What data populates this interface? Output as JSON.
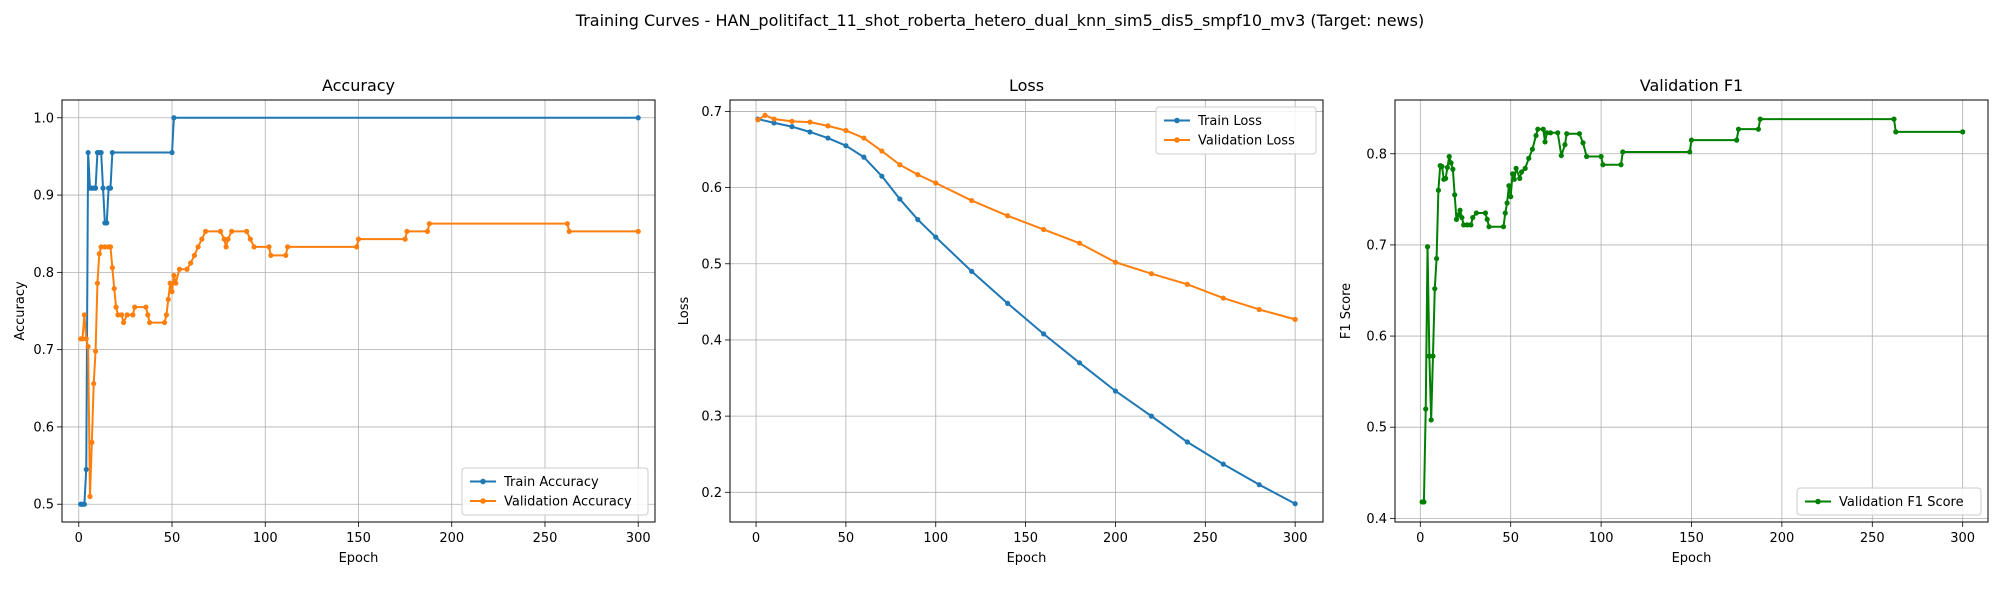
{
  "suptitle": "Training Curves - HAN_politifact_11_shot_roberta_hetero_dual_knn_sim5_dis5_smpf10_mv3 (Target: news)",
  "chart_data": [
    {
      "type": "line",
      "title": "Accuracy",
      "xlabel": "Epoch",
      "ylabel": "Accuracy",
      "xlim": [
        -9,
        309
      ],
      "ylim": [
        0.477,
        1.023
      ],
      "xticks": [
        0,
        50,
        100,
        150,
        200,
        250,
        300
      ],
      "yticks": [
        0.5,
        0.6,
        0.7,
        0.8,
        0.9,
        1.0
      ],
      "ytick_labels": [
        "0.5",
        "0.6",
        "0.7",
        "0.8",
        "0.9",
        "1.0"
      ],
      "grid": true,
      "legend_loc": "lower-right",
      "series": [
        {
          "name": "Train Accuracy",
          "color": "#1f77b4",
          "points": [
            [
              1,
              0.5
            ],
            [
              2,
              0.5
            ],
            [
              3,
              0.5
            ],
            [
              4,
              0.545
            ],
            [
              5,
              0.955
            ],
            [
              6,
              0.909
            ],
            [
              7,
              0.909
            ],
            [
              8,
              0.909
            ],
            [
              9,
              0.909
            ],
            [
              10,
              0.955
            ],
            [
              11,
              0.955
            ],
            [
              12,
              0.955
            ],
            [
              13,
              0.909
            ],
            [
              14,
              0.864
            ],
            [
              15,
              0.864
            ],
            [
              16,
              0.909
            ],
            [
              17,
              0.909
            ],
            [
              18,
              0.955
            ],
            [
              50,
              0.955
            ],
            [
              51,
              1.0
            ],
            [
              300,
              1.0
            ]
          ]
        },
        {
          "name": "Validation Accuracy",
          "color": "#ff7f0e",
          "points": [
            [
              1,
              0.714
            ],
            [
              2,
              0.714
            ],
            [
              3,
              0.745
            ],
            [
              4,
              0.714
            ],
            [
              5,
              0.704
            ],
            [
              6,
              0.51
            ],
            [
              7,
              0.58
            ],
            [
              8,
              0.656
            ],
            [
              9,
              0.698
            ],
            [
              10,
              0.786
            ],
            [
              11,
              0.824
            ],
            [
              12,
              0.833
            ],
            [
              14,
              0.833
            ],
            [
              16,
              0.833
            ],
            [
              17,
              0.833
            ],
            [
              18,
              0.806
            ],
            [
              19,
              0.779
            ],
            [
              20,
              0.755
            ],
            [
              21,
              0.745
            ],
            [
              23,
              0.745
            ],
            [
              24,
              0.735
            ],
            [
              26,
              0.745
            ],
            [
              29,
              0.745
            ],
            [
              30,
              0.755
            ],
            [
              36,
              0.755
            ],
            [
              37,
              0.745
            ],
            [
              38,
              0.735
            ],
            [
              46,
              0.735
            ],
            [
              47,
              0.745
            ],
            [
              48,
              0.765
            ],
            [
              49,
              0.786
            ],
            [
              50,
              0.775
            ],
            [
              51,
              0.796
            ],
            [
              52,
              0.786
            ],
            [
              54,
              0.804
            ],
            [
              58,
              0.804
            ],
            [
              60,
              0.812
            ],
            [
              62,
              0.822
            ],
            [
              64,
              0.833
            ],
            [
              66,
              0.843
            ],
            [
              68,
              0.853
            ],
            [
              76,
              0.853
            ],
            [
              78,
              0.843
            ],
            [
              79,
              0.833
            ],
            [
              80,
              0.843
            ],
            [
              82,
              0.853
            ],
            [
              90,
              0.853
            ],
            [
              92,
              0.843
            ],
            [
              94,
              0.833
            ],
            [
              102,
              0.833
            ],
            [
              103,
              0.822
            ],
            [
              111,
              0.822
            ],
            [
              112,
              0.833
            ],
            [
              149,
              0.833
            ],
            [
              150,
              0.843
            ],
            [
              175,
              0.843
            ],
            [
              176,
              0.853
            ],
            [
              187,
              0.853
            ],
            [
              188,
              0.863
            ],
            [
              262,
              0.863
            ],
            [
              263,
              0.853
            ],
            [
              300,
              0.853
            ]
          ]
        }
      ]
    },
    {
      "type": "line",
      "title": "Loss",
      "xlabel": "Epoch",
      "ylabel": "Loss",
      "xlim": [
        -14.5,
        315.5
      ],
      "ylim": [
        0.161,
        0.715
      ],
      "xticks": [
        0,
        50,
        100,
        150,
        200,
        250,
        300
      ],
      "yticks": [
        0.2,
        0.3,
        0.4,
        0.5,
        0.6,
        0.7
      ],
      "ytick_labels": [
        "0.2",
        "0.3",
        "0.4",
        "0.5",
        "0.6",
        "0.7"
      ],
      "grid": true,
      "legend_loc": "top-right",
      "series": [
        {
          "name": "Train Loss",
          "color": "#1f77b4",
          "points": [
            [
              1,
              0.69
            ],
            [
              10,
              0.685
            ],
            [
              20,
              0.68
            ],
            [
              30,
              0.673
            ],
            [
              40,
              0.665
            ],
            [
              50,
              0.655
            ],
            [
              60,
              0.64
            ],
            [
              70,
              0.615
            ],
            [
              80,
              0.585
            ],
            [
              90,
              0.558
            ],
            [
              100,
              0.535
            ],
            [
              120,
              0.49
            ],
            [
              140,
              0.448
            ],
            [
              160,
              0.408
            ],
            [
              180,
              0.37
            ],
            [
              200,
              0.333
            ],
            [
              220,
              0.3
            ],
            [
              240,
              0.266
            ],
            [
              260,
              0.237
            ],
            [
              280,
              0.21
            ],
            [
              300,
              0.185
            ]
          ]
        },
        {
          "name": "Validation Loss",
          "color": "#ff7f0e",
          "points": [
            [
              1,
              0.689
            ],
            [
              5,
              0.695
            ],
            [
              10,
              0.69
            ],
            [
              20,
              0.687
            ],
            [
              30,
              0.686
            ],
            [
              40,
              0.681
            ],
            [
              50,
              0.675
            ],
            [
              60,
              0.665
            ],
            [
              70,
              0.648
            ],
            [
              80,
              0.63
            ],
            [
              90,
              0.617
            ],
            [
              100,
              0.606
            ],
            [
              120,
              0.583
            ],
            [
              140,
              0.563
            ],
            [
              160,
              0.545
            ],
            [
              180,
              0.527
            ],
            [
              200,
              0.502
            ],
            [
              220,
              0.487
            ],
            [
              240,
              0.473
            ],
            [
              260,
              0.455
            ],
            [
              280,
              0.44
            ],
            [
              300,
              0.427
            ]
          ]
        }
      ]
    },
    {
      "type": "line",
      "title": "Validation F1",
      "xlabel": "Epoch",
      "ylabel": "F1 Score",
      "xlim": [
        -14,
        314
      ],
      "ylim": [
        0.396,
        0.859
      ],
      "xticks": [
        0,
        50,
        100,
        150,
        200,
        250,
        300
      ],
      "yticks": [
        0.4,
        0.5,
        0.6,
        0.7,
        0.8
      ],
      "ytick_labels": [
        "0.4",
        "0.5",
        "0.6",
        "0.7",
        "0.8"
      ],
      "grid": true,
      "legend_loc": "lower-right",
      "series": [
        {
          "name": "Validation F1 Score",
          "color": "#008000",
          "points": [
            [
              1,
              0.418
            ],
            [
              2,
              0.418
            ],
            [
              3,
              0.52
            ],
            [
              4,
              0.698
            ],
            [
              5,
              0.578
            ],
            [
              6,
              0.508
            ],
            [
              7,
              0.578
            ],
            [
              8,
              0.652
            ],
            [
              9,
              0.685
            ],
            [
              10,
              0.76
            ],
            [
              11,
              0.787
            ],
            [
              12,
              0.786
            ],
            [
              13,
              0.772
            ],
            [
              14,
              0.773
            ],
            [
              15,
              0.785
            ],
            [
              16,
              0.797
            ],
            [
              17,
              0.79
            ],
            [
              18,
              0.783
            ],
            [
              19,
              0.755
            ],
            [
              20,
              0.728
            ],
            [
              21,
              0.733
            ],
            [
              22,
              0.738
            ],
            [
              23,
              0.73
            ],
            [
              24,
              0.722
            ],
            [
              26,
              0.722
            ],
            [
              28,
              0.722
            ],
            [
              29,
              0.73
            ],
            [
              31,
              0.735
            ],
            [
              36,
              0.735
            ],
            [
              37,
              0.728
            ],
            [
              38,
              0.72
            ],
            [
              46,
              0.72
            ],
            [
              47,
              0.735
            ],
            [
              48,
              0.746
            ],
            [
              49,
              0.765
            ],
            [
              50,
              0.753
            ],
            [
              51,
              0.778
            ],
            [
              52,
              0.772
            ],
            [
              53,
              0.784
            ],
            [
              55,
              0.773
            ],
            [
              56,
              0.78
            ],
            [
              58,
              0.784
            ],
            [
              60,
              0.795
            ],
            [
              62,
              0.805
            ],
            [
              64,
              0.82
            ],
            [
              65,
              0.827
            ],
            [
              68,
              0.827
            ],
            [
              69,
              0.813
            ],
            [
              70,
              0.823
            ],
            [
              72,
              0.823
            ],
            [
              76,
              0.823
            ],
            [
              78,
              0.798
            ],
            [
              80,
              0.81
            ],
            [
              81,
              0.822
            ],
            [
              88,
              0.822
            ],
            [
              90,
              0.812
            ],
            [
              92,
              0.797
            ],
            [
              100,
              0.797
            ],
            [
              101,
              0.788
            ],
            [
              111,
              0.788
            ],
            [
              112,
              0.802
            ],
            [
              149,
              0.802
            ],
            [
              150,
              0.815
            ],
            [
              175,
              0.815
            ],
            [
              176,
              0.827
            ],
            [
              187,
              0.827
            ],
            [
              188,
              0.838
            ],
            [
              262,
              0.838
            ],
            [
              263,
              0.824
            ],
            [
              300,
              0.824
            ]
          ]
        }
      ]
    }
  ]
}
